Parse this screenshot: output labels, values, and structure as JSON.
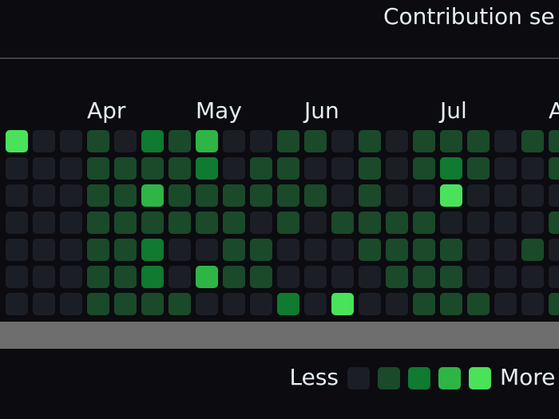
{
  "header": {
    "title": "Contribution se"
  },
  "calendar": {
    "months": [
      null,
      null,
      null,
      "Apr",
      null,
      null,
      null,
      "May",
      null,
      null,
      null,
      "Jun",
      null,
      null,
      null,
      null,
      "Jul",
      null,
      null,
      null,
      "A"
    ],
    "levels": [
      [
        4,
        0,
        0,
        1,
        0,
        2,
        1,
        3,
        0,
        0,
        1,
        1,
        0,
        1,
        0,
        1,
        1,
        1,
        0,
        1,
        1
      ],
      [
        0,
        0,
        0,
        1,
        1,
        1,
        1,
        2,
        0,
        1,
        1,
        0,
        0,
        1,
        0,
        1,
        2,
        1,
        0,
        0,
        1
      ],
      [
        0,
        0,
        0,
        1,
        1,
        3,
        1,
        1,
        1,
        1,
        1,
        1,
        0,
        1,
        0,
        0,
        4,
        0,
        0,
        0,
        0
      ],
      [
        0,
        0,
        0,
        1,
        1,
        1,
        1,
        1,
        1,
        0,
        1,
        0,
        1,
        1,
        1,
        1,
        0,
        0,
        0,
        0,
        1
      ],
      [
        0,
        0,
        0,
        1,
        1,
        2,
        0,
        0,
        1,
        1,
        0,
        0,
        0,
        1,
        1,
        1,
        1,
        0,
        0,
        1,
        0
      ],
      [
        0,
        0,
        0,
        1,
        1,
        2,
        0,
        3,
        1,
        1,
        0,
        0,
        0,
        0,
        1,
        1,
        1,
        0,
        0,
        0,
        0
      ],
      [
        0,
        0,
        0,
        1,
        1,
        1,
        1,
        0,
        0,
        0,
        2,
        0,
        4,
        0,
        0,
        1,
        1,
        1,
        0,
        0,
        1
      ]
    ],
    "level_colors": [
      "#1c1e26",
      "#1a4a2a",
      "#0f7a30",
      "#2fb446",
      "#4ae25a"
    ]
  },
  "legend": {
    "less": "Less",
    "more": "More",
    "levels": [
      0,
      1,
      2,
      3,
      4
    ]
  }
}
